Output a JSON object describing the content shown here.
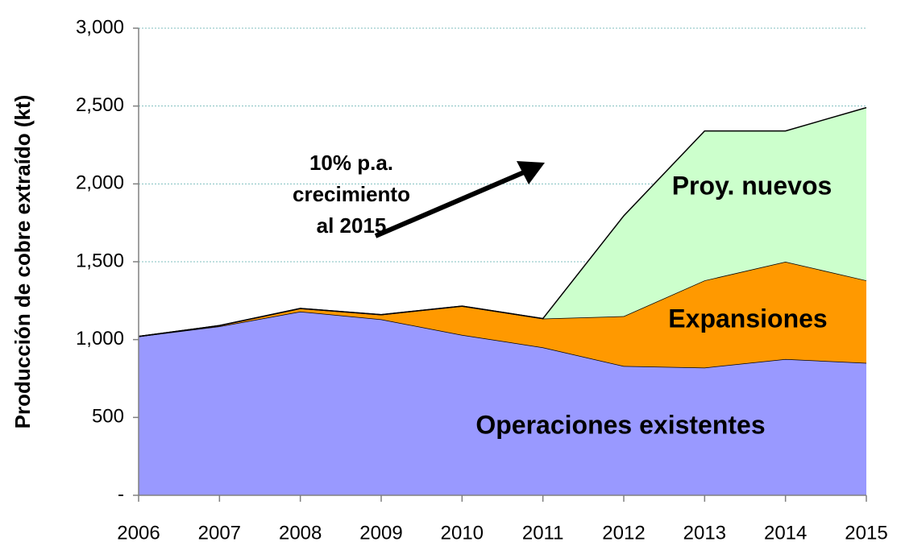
{
  "chart_data": {
    "type": "stacked_area",
    "y_label": "Producción de cobre extraído (kt)",
    "categories": [
      "2006",
      "2007",
      "2008",
      "2009",
      "2010",
      "2011",
      "2012",
      "2013",
      "2014",
      "2015"
    ],
    "series": [
      {
        "name": "Operaciones existentes",
        "color": "#9999ff",
        "values": [
          1020,
          1085,
          1180,
          1130,
          1030,
          950,
          830,
          820,
          875,
          850
        ]
      },
      {
        "name": "Expansiones",
        "color": "#ff9900",
        "values": [
          0,
          5,
          20,
          30,
          185,
          185,
          320,
          560,
          625,
          530
        ]
      },
      {
        "name": "Proy. nuevos",
        "color": "#ccffcc",
        "values": [
          0,
          0,
          0,
          0,
          0,
          0,
          645,
          960,
          840,
          1110
        ]
      }
    ],
    "annotation": [
      "10% p.a.",
      "crecimiento",
      "al 2015"
    ],
    "ylim": [
      0,
      3000
    ],
    "yticks": [
      {
        "value": 0,
        "label": "-"
      },
      500,
      {
        "value": 1000,
        "label": "1,000"
      },
      {
        "value": 1500,
        "label": "1,500"
      },
      {
        "value": 2000,
        "label": "2,000"
      },
      {
        "value": 2500,
        "label": "2,500"
      },
      {
        "value": 3000,
        "label": "3,000"
      }
    ],
    "grid": true
  }
}
